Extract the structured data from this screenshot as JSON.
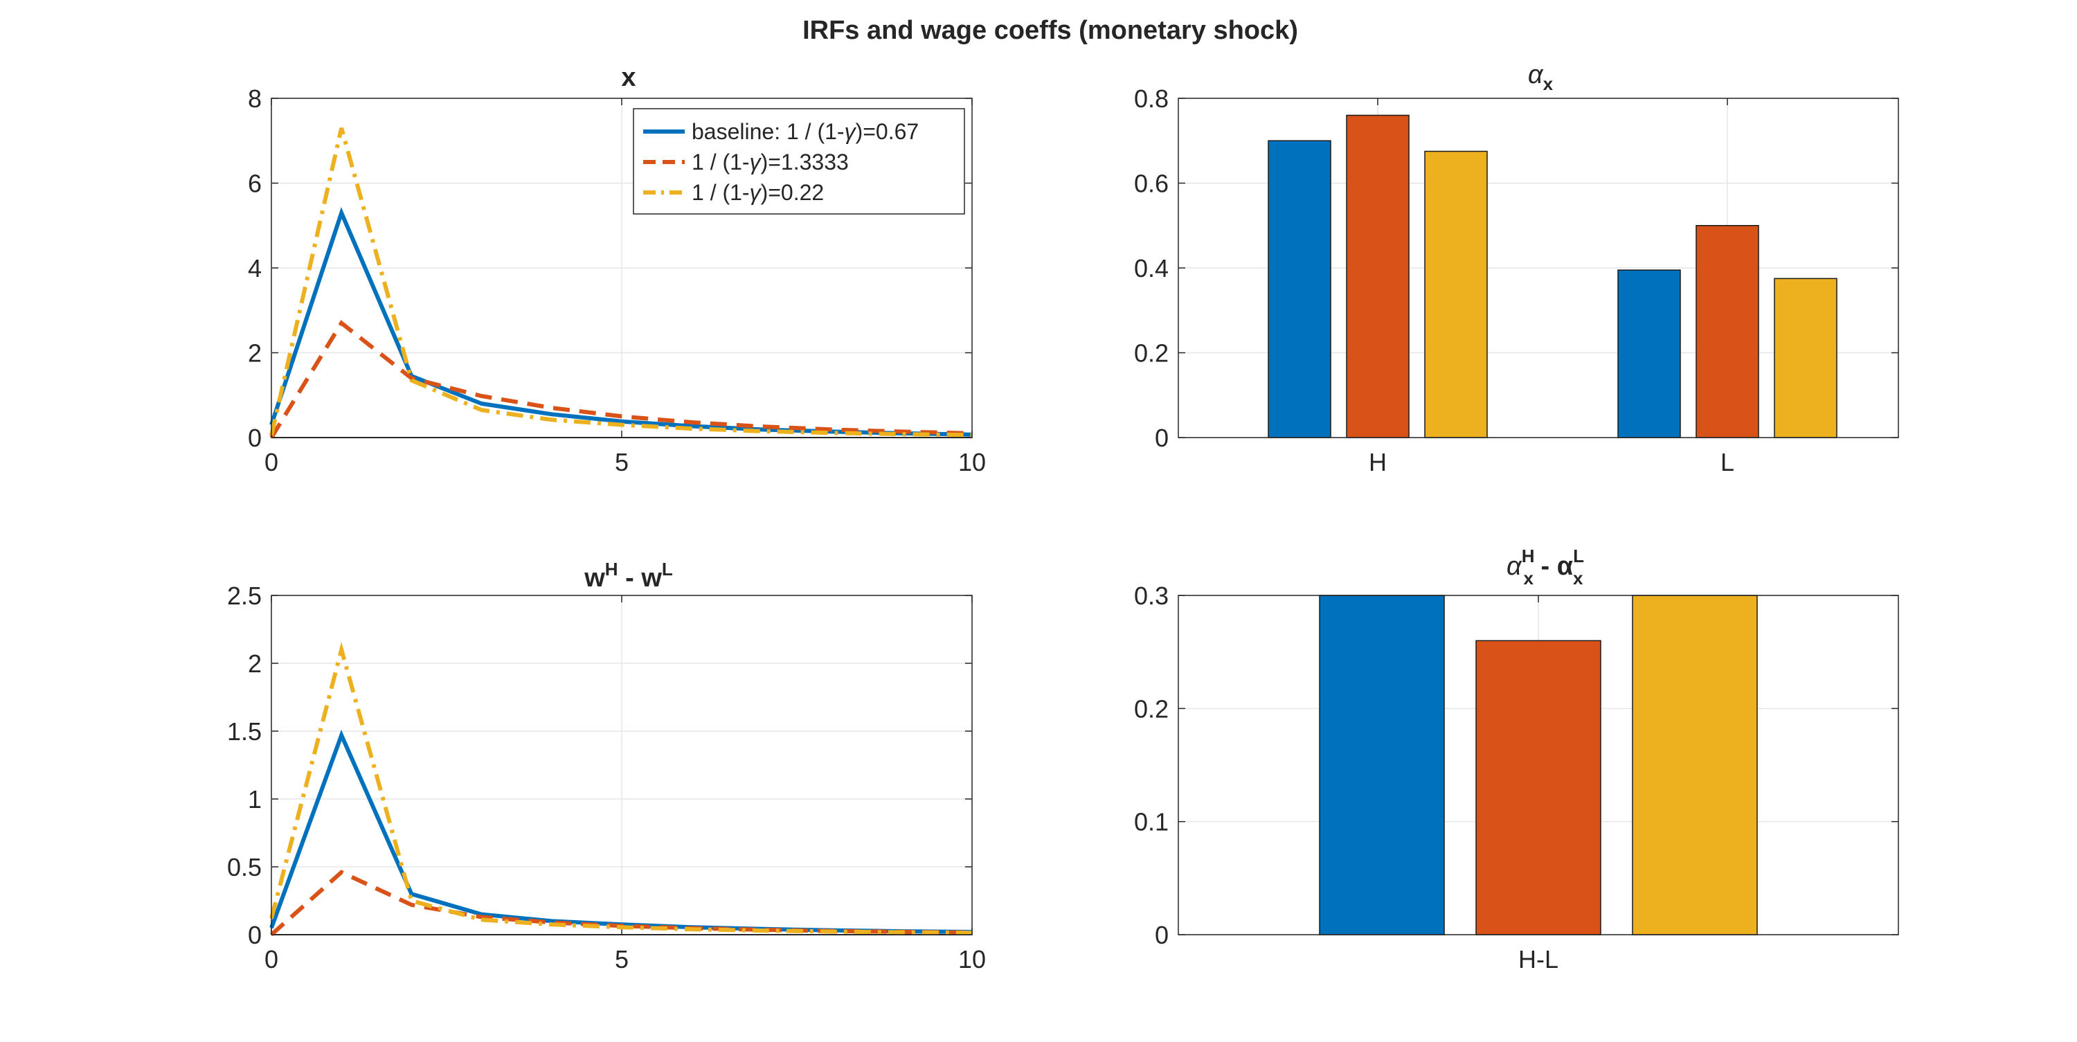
{
  "figure": {
    "title": "IRFs and wage coeffs (monetary shock)"
  },
  "colors": {
    "blue": "#0072BD",
    "orange": "#D95319",
    "yellow": "#EDB120"
  },
  "chart_data": [
    {
      "id": "x",
      "type": "line",
      "title": "x",
      "xlim": [
        0,
        10
      ],
      "ylim": [
        0,
        8
      ],
      "xticks": [
        "0",
        "5",
        "10"
      ],
      "yticks": [
        "0",
        "2",
        "4",
        "6",
        "8"
      ],
      "grid": true,
      "legend_position": "top-right",
      "x": [
        0,
        1,
        2,
        3,
        4,
        5,
        6,
        7,
        8,
        9,
        10
      ],
      "series": [
        {
          "name": "baseline: 1 / (1-γ)=0.67",
          "style": "solid",
          "color": "#0072BD",
          "values": [
            0.3,
            5.3,
            1.45,
            0.8,
            0.55,
            0.38,
            0.27,
            0.19,
            0.14,
            0.1,
            0.07
          ]
        },
        {
          "name": "1 / (1-γ)=1.3333",
          "style": "dashed",
          "color": "#D95319",
          "values": [
            0,
            2.7,
            1.4,
            0.98,
            0.7,
            0.5,
            0.36,
            0.26,
            0.19,
            0.14,
            0.1
          ]
        },
        {
          "name": "1 / (1-γ)=0.22",
          "style": "dashdot",
          "color": "#EDB120",
          "values": [
            0.05,
            7.3,
            1.35,
            0.65,
            0.42,
            0.3,
            0.21,
            0.15,
            0.11,
            0.08,
            0.06
          ]
        }
      ]
    },
    {
      "id": "alpha_x",
      "type": "bar",
      "title": "α",
      "title_sub": "x",
      "categories": [
        "H",
        "L"
      ],
      "ylim": [
        0,
        0.8
      ],
      "yticks": [
        "0",
        "0.2",
        "0.4",
        "0.6",
        "0.8"
      ],
      "grid": true,
      "series": [
        {
          "color": "#0072BD",
          "values": [
            0.7,
            0.395
          ]
        },
        {
          "color": "#D95319",
          "values": [
            0.76,
            0.5
          ]
        },
        {
          "color": "#EDB120",
          "values": [
            0.675,
            0.375
          ]
        }
      ]
    },
    {
      "id": "wage_gap",
      "type": "line",
      "title": "w",
      "title_sup1": "H",
      "title_mid": " - w",
      "title_sup2": "L",
      "xlim": [
        0,
        10
      ],
      "ylim": [
        0,
        2.5
      ],
      "xticks": [
        "0",
        "5",
        "10"
      ],
      "yticks": [
        "0",
        "0.5",
        "1",
        "1.5",
        "2",
        "2.5"
      ],
      "grid": true,
      "x": [
        0,
        1,
        2,
        3,
        4,
        5,
        6,
        7,
        8,
        9,
        10
      ],
      "series": [
        {
          "style": "solid",
          "color": "#0072BD",
          "values": [
            0.05,
            1.47,
            0.3,
            0.15,
            0.1,
            0.075,
            0.055,
            0.042,
            0.032,
            0.025,
            0.02
          ]
        },
        {
          "style": "dashed",
          "color": "#D95319",
          "values": [
            0,
            0.46,
            0.22,
            0.13,
            0.09,
            0.065,
            0.048,
            0.036,
            0.027,
            0.021,
            0.016
          ]
        },
        {
          "style": "dashdot",
          "color": "#EDB120",
          "values": [
            0.12,
            2.1,
            0.25,
            0.11,
            0.075,
            0.055,
            0.04,
            0.03,
            0.023,
            0.018,
            0.014
          ]
        }
      ]
    },
    {
      "id": "alpha_gap",
      "type": "bar",
      "title": "α",
      "title_sup1": "H",
      "title_sub1": "x",
      "title_mid": " - α",
      "title_sup2": "L",
      "title_sub2": "x",
      "categories": [
        "H-L"
      ],
      "ylim": [
        0,
        0.3
      ],
      "yticks": [
        "0",
        "0.1",
        "0.2",
        "0.3"
      ],
      "grid": true,
      "series": [
        {
          "color": "#0072BD",
          "values": [
            0.305
          ]
        },
        {
          "color": "#D95319",
          "values": [
            0.26
          ]
        },
        {
          "color": "#EDB120",
          "values": [
            0.302
          ]
        }
      ]
    }
  ]
}
